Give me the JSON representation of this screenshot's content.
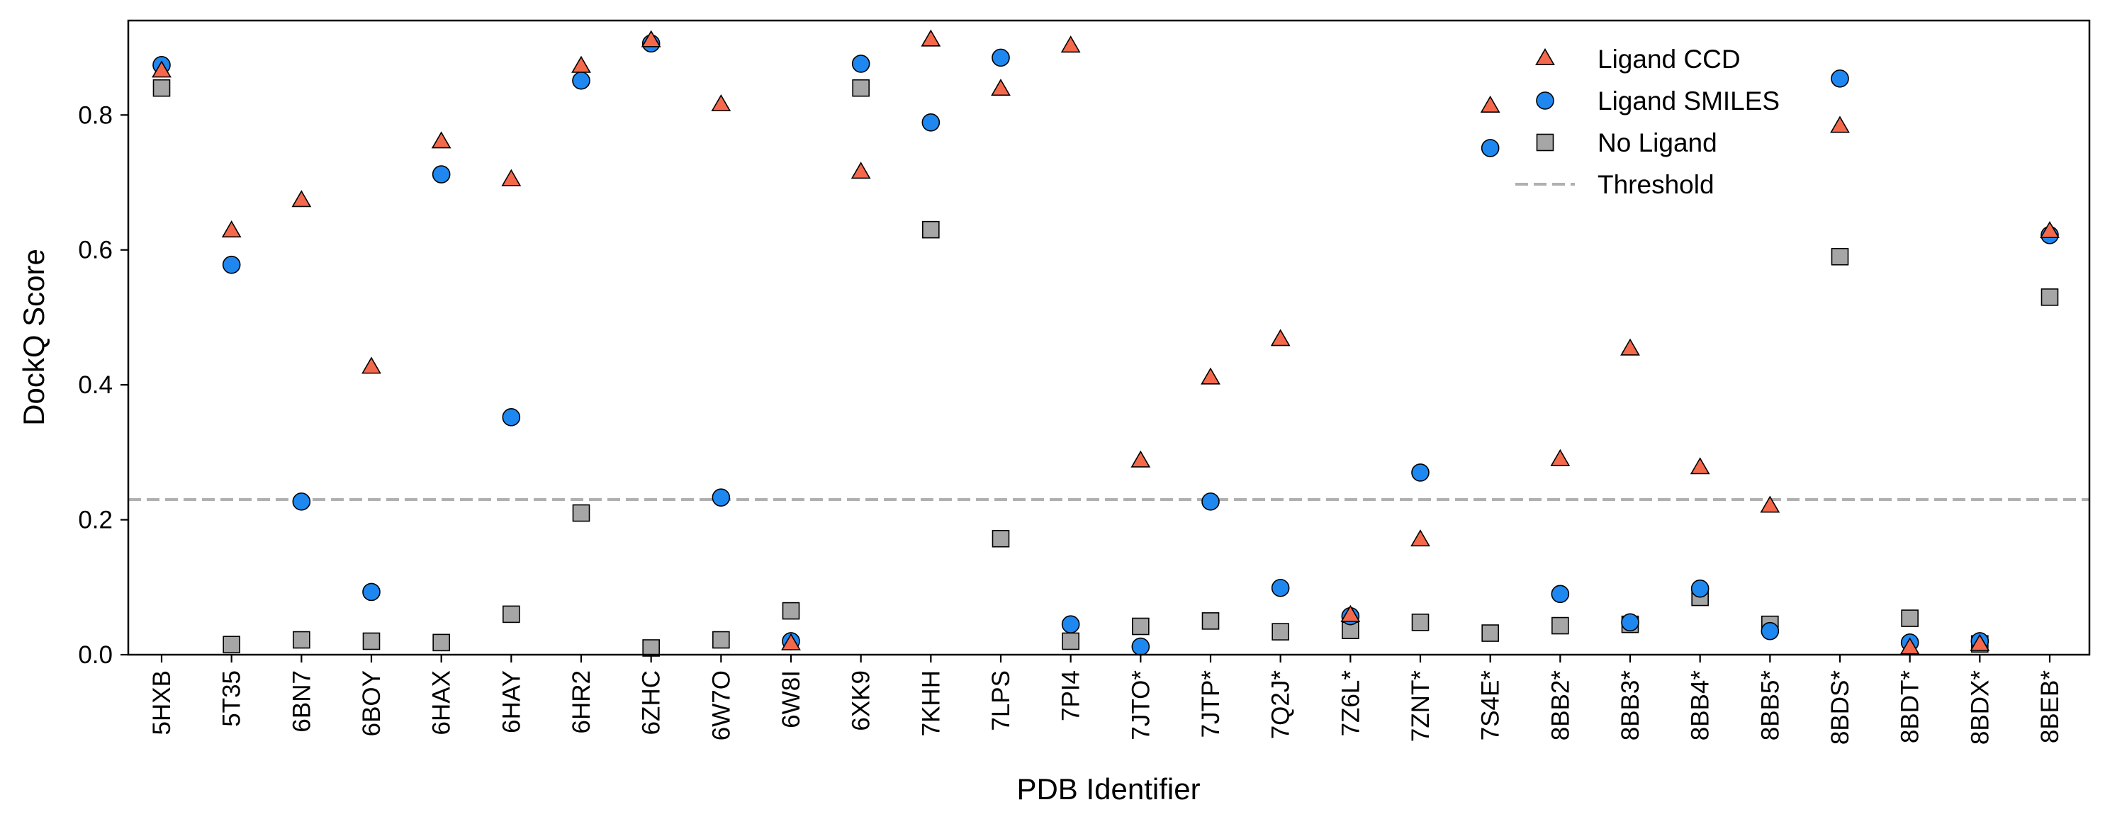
{
  "chart_data": {
    "type": "scatter",
    "title": "",
    "xlabel": "PDB Identifier",
    "ylabel": "DockQ Score",
    "ylim": [
      0,
      0.94
    ],
    "yticks": [
      "0.0",
      "0.2",
      "0.4",
      "0.6",
      "0.8"
    ],
    "ytick_values": [
      0,
      0.2,
      0.4,
      0.6,
      0.8
    ],
    "grid": false,
    "legend_position": "top-right",
    "categories": [
      "5HXB",
      "5T35",
      "6BN7",
      "6BOY",
      "6HAX",
      "6HAY",
      "6HR2",
      "6ZHC",
      "6W7O",
      "6W8I",
      "6XK9",
      "7KHH",
      "7LPS",
      "7PI4",
      "7JTO*",
      "7JTP*",
      "7Q2J*",
      "7Z6L*",
      "7ZNT*",
      "7S4E*",
      "8BB2*",
      "8BB3*",
      "8BB4*",
      "8BB5*",
      "8BDS*",
      "8BDT*",
      "8BDX*",
      "8BEB*"
    ],
    "series": [
      {
        "name": "Ligand CCD",
        "marker": "triangle",
        "color": "#F4694C",
        "values": [
          0.865,
          0.628,
          0.673,
          0.426,
          0.76,
          0.704,
          0.872,
          0.91,
          0.815,
          0.016,
          0.715,
          0.911,
          0.838,
          0.902,
          0.287,
          0.41,
          0.467,
          0.058,
          0.17,
          0.813,
          0.289,
          0.453,
          0.277,
          0.22,
          0.783,
          0.01,
          0.015,
          0.627
        ]
      },
      {
        "name": "Ligand SMILES",
        "marker": "circle",
        "color": "#1E88F0",
        "values": [
          0.874,
          0.578,
          0.227,
          0.093,
          0.712,
          0.352,
          0.851,
          0.906,
          0.233,
          0.02,
          0.876,
          0.789,
          0.885,
          0.045,
          0.012,
          0.227,
          0.099,
          0.057,
          0.27,
          0.751,
          0.09,
          0.048,
          0.098,
          0.035,
          0.854,
          0.018,
          0.02,
          0.622
        ]
      },
      {
        "name": "No Ligand",
        "marker": "square",
        "color": "#A6A6A6",
        "values": [
          0.84,
          0.015,
          0.022,
          0.02,
          0.018,
          0.06,
          0.21,
          0.01,
          0.022,
          0.065,
          0.84,
          0.63,
          0.172,
          0.02,
          0.042,
          0.05,
          0.034,
          0.036,
          0.048,
          0.032,
          0.043,
          0.045,
          0.085,
          0.045,
          0.59,
          0.054,
          0.016,
          0.53
        ]
      }
    ],
    "threshold": {
      "name": "Threshold",
      "value": 0.23,
      "color": "#B0B0B0",
      "style": "dashed"
    }
  }
}
